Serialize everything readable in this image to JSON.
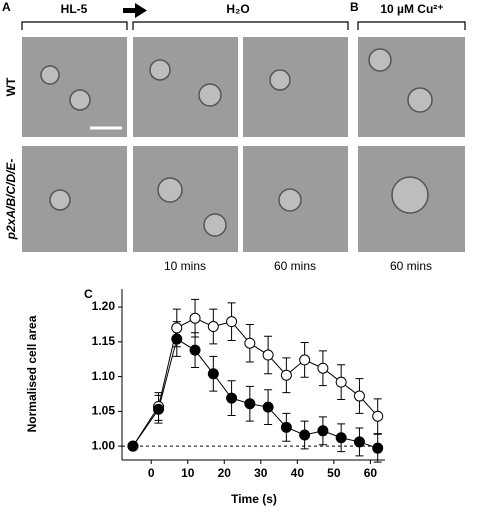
{
  "figure": {
    "panel_a": {
      "label": "A",
      "condition_1": "HL-5",
      "condition_2": "H₂O",
      "rows": [
        "WT",
        "p2xA/B/C/D/E-"
      ],
      "times": [
        "10 mins",
        "60 mins"
      ]
    },
    "panel_b": {
      "label": "B",
      "condition": "10 µM Cu²⁺",
      "time": "60 mins"
    },
    "panel_c": {
      "label": "C"
    }
  },
  "chart_data": {
    "type": "line",
    "xlabel": "Time (s)",
    "ylabel": "Normalised cell area",
    "x": [
      -5,
      2,
      7,
      12,
      17,
      22,
      27,
      32,
      37,
      42,
      47,
      52,
      57,
      62
    ],
    "series": [
      {
        "color": "#000000",
        "marker_fill": "#ffffff",
        "values": [
          1.0,
          1.057,
          1.17,
          1.184,
          1.172,
          1.179,
          1.148,
          1.131,
          1.102,
          1.124,
          1.112,
          1.092,
          1.072,
          1.043
        ],
        "errors": [
          0,
          0.02,
          0.027,
          0.027,
          0.025,
          0.027,
          0.027,
          0.027,
          0.025,
          0.025,
          0.025,
          0.025,
          0.025,
          0.025
        ]
      },
      {
        "color": "#000000",
        "marker_fill": "#000000",
        "values": [
          1.0,
          1.053,
          1.154,
          1.138,
          1.104,
          1.069,
          1.061,
          1.056,
          1.027,
          1.016,
          1.022,
          1.012,
          1.006,
          0.997
        ],
        "errors": [
          0,
          0.02,
          0.025,
          0.025,
          0.025,
          0.025,
          0.025,
          0.025,
          0.02,
          0.02,
          0.02,
          0.02,
          0.02,
          0.02
        ]
      }
    ],
    "xlim": [
      -8,
      64
    ],
    "ylim": [
      0.98,
      1.226
    ],
    "xticks": [
      0,
      10,
      20,
      30,
      40,
      50,
      60
    ],
    "yticks": [
      {
        "value": 1,
        "label": "1.00"
      },
      {
        "value": 1.05,
        "label": "1.05"
      },
      {
        "value": 1.1,
        "label": "1.10"
      },
      {
        "value": 1.15,
        "label": "1.15"
      },
      {
        "value": 1.2,
        "label": "1.20"
      }
    ],
    "reference_line": 1
  }
}
